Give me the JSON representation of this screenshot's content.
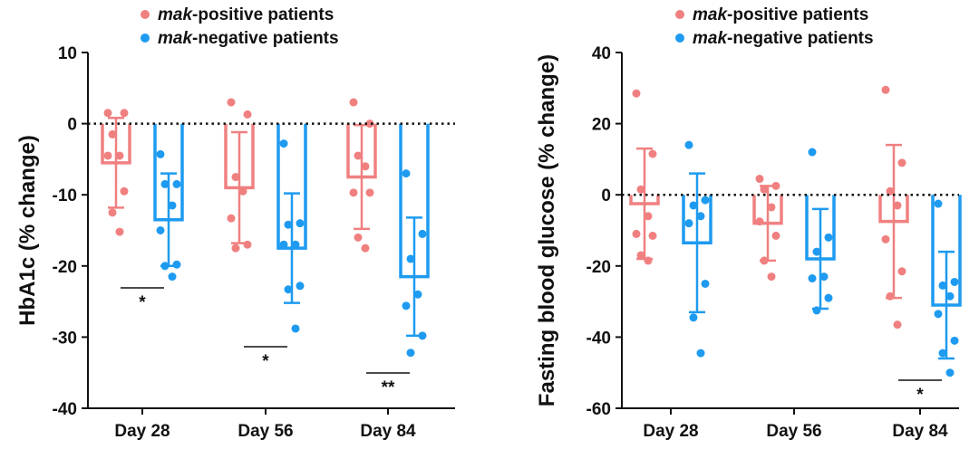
{
  "colors": {
    "positive": "#F08080",
    "negative": "#1E9BF0"
  },
  "chart_data": [
    {
      "type": "bar",
      "ylabel": "HbA1c (% change)",
      "ylim": [
        -40,
        10
      ],
      "yticks": [
        10,
        0,
        -10,
        -20,
        -30,
        -40
      ],
      "ytick_labels": [
        "10",
        "0",
        "-10",
        "-20",
        "-30",
        "-40"
      ],
      "categories": [
        "Day 28",
        "Day 56",
        "Day 84"
      ],
      "legend": [
        "mak-positive patients",
        "mak-negative patients"
      ],
      "legend_italic": "mak",
      "legend_rest": [
        "-positive patients",
        "-negative patients"
      ],
      "series": [
        {
          "name": "mak-positive patients",
          "values": [
            -5.5,
            -9.0,
            -7.5
          ],
          "errors": [
            6.3,
            7.8,
            7.3
          ],
          "points": [
            [
              1.5,
              1.5,
              -1.5,
              -4.5,
              -4.5,
              -9.5,
              -12.5,
              -15.2
            ],
            [
              3.0,
              1.3,
              -7.5,
              -9.5,
              -13.3,
              -17.0,
              -17.5
            ],
            [
              3.0,
              0.0,
              -4.5,
              -6.0,
              -9.7,
              -9.7,
              -16.0,
              -17.5
            ]
          ]
        },
        {
          "name": "mak-negative patients",
          "values": [
            -13.5,
            -17.5,
            -21.5
          ],
          "errors": [
            6.5,
            7.7,
            8.3
          ],
          "points": [
            [
              -4.3,
              -8.5,
              -8.5,
              -11.5,
              -15.0,
              -19.8,
              -20.0,
              -21.5
            ],
            [
              -2.8,
              -14.0,
              -14.2,
              -17.0,
              -17.0,
              -22.8,
              -23.3,
              -28.8
            ],
            [
              -7.0,
              -15.5,
              -19.0,
              -24.0,
              -25.6,
              -29.8,
              -32.2
            ]
          ]
        }
      ],
      "significance": [
        "*",
        "*",
        "**"
      ]
    },
    {
      "type": "bar",
      "ylabel": "Fasting blood glucose (% change)",
      "ylim": [
        -60,
        40
      ],
      "yticks": [
        40,
        20,
        0,
        -20,
        -40,
        -60
      ],
      "ytick_labels": [
        "40",
        "20",
        "0",
        "-20",
        "-40",
        "-60"
      ],
      "categories": [
        "Day 28",
        "Day 56",
        "Day 84"
      ],
      "legend": [
        "mak-positive patients",
        "mak-negative patients"
      ],
      "legend_italic": "mak",
      "legend_rest": [
        "-positive patients",
        "-negative patients"
      ],
      "series": [
        {
          "name": "mak-positive patients",
          "values": [
            -2.5,
            -8.0,
            -7.5
          ],
          "errors": [
            15.5,
            10.5,
            21.5
          ],
          "points": [
            [
              28.5,
              11.5,
              1.5,
              -6.0,
              -11.0,
              -11.5,
              -17.0,
              -18.5
            ],
            [
              4.5,
              2.5,
              1.5,
              -3.5,
              -7.5,
              -11.5,
              -18.5,
              -23.0
            ],
            [
              29.5,
              9.0,
              1.0,
              -3.0,
              -12.5,
              -21.5,
              -28.5,
              -36.5
            ]
          ]
        },
        {
          "name": "mak-negative patients",
          "values": [
            -13.5,
            -18.0,
            -31.0
          ],
          "errors": [
            19.5,
            14.0,
            15.0
          ],
          "points": [
            [
              14.0,
              -1.5,
              -3.0,
              -6.0,
              -8.0,
              -25.0,
              -34.5,
              -44.5
            ],
            [
              12.0,
              -12.0,
              -16.0,
              -23.0,
              -23.5,
              -29.0,
              -32.5
            ],
            [
              -2.5,
              -24.5,
              -25.5,
              -28.5,
              -33.5,
              -41.0,
              -44.5,
              -50.0
            ]
          ]
        }
      ],
      "significance": [
        "",
        "",
        "*"
      ]
    }
  ]
}
